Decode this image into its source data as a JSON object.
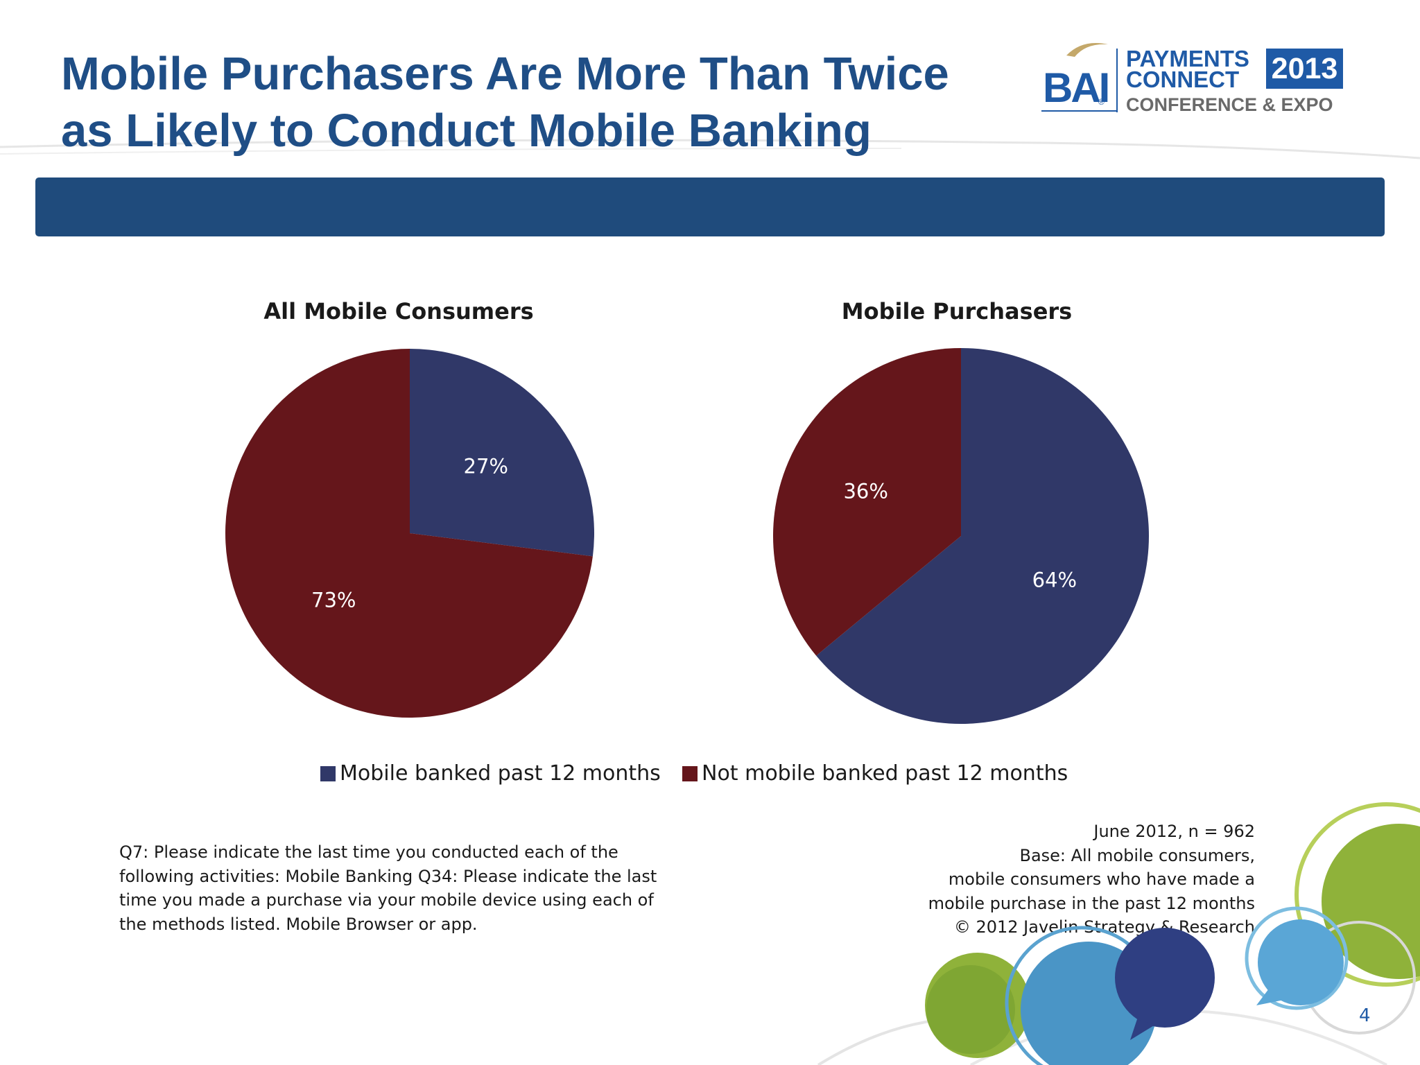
{
  "slide": {
    "title_line1": "Mobile Purchasers Are More Than Twice",
    "title_line2": "as Likely to Conduct Mobile Banking",
    "page_number": "4"
  },
  "logo": {
    "brand": "BAI",
    "registered": "®",
    "line1": "PAYMENTS",
    "line2": "CONNECT",
    "year": "2013",
    "line3": "CONFERENCE & EXPO"
  },
  "colors": {
    "title": "#1f4e86",
    "band": "#1f4b7c",
    "mobile_banked": "#303868",
    "not_mobile_banked": "#65161b"
  },
  "chart_data": [
    {
      "type": "pie",
      "title": "All Mobile  Consumers",
      "categories": [
        "Mobile banked past 12 months",
        "Not mobile banked past 12 months"
      ],
      "values": [
        27,
        73
      ],
      "labels": [
        "27%",
        "73%"
      ]
    },
    {
      "type": "pie",
      "title": "Mobile Purchasers",
      "categories": [
        "Mobile banked past 12 months",
        "Not mobile banked past 12 months"
      ],
      "values": [
        64,
        36
      ],
      "labels": [
        "64%",
        "36%"
      ]
    }
  ],
  "legend": {
    "position": "bottom",
    "items": [
      {
        "label": "Mobile banked past 12 months",
        "color": "#303868"
      },
      {
        "label": "Not mobile banked past 12 months",
        "color": "#65161b"
      }
    ]
  },
  "notes": {
    "question_lines": [
      "Q7: Please indicate the last time you conducted each of the",
      "following activities: Mobile Banking Q34: Please indicate the last",
      "time you made a purchase via your mobile device using each of",
      "the methods  listed. Mobile Browser or app."
    ],
    "source_lines": [
      "June 2012,  n = 962",
      "Base: All mobile consumers,",
      "mobile consumers who have made a",
      "mobile purchase in the past 12 months",
      "© 2012 Javelin Strategy & Research"
    ]
  }
}
